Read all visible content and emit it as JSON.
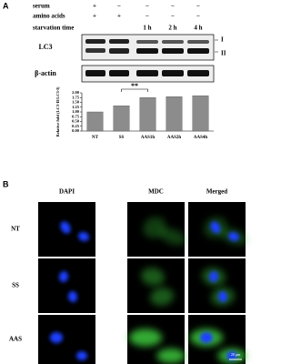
{
  "panel_a": {
    "label": "A",
    "conditions": [
      {
        "name": "serum",
        "marks": [
          "+",
          "−",
          "−",
          "−",
          "−"
        ]
      },
      {
        "name": "amino acids",
        "marks": [
          "+",
          "+",
          "−",
          "−",
          "−"
        ]
      },
      {
        "name": "starvation time",
        "marks": [
          null,
          null,
          "1 h",
          "2 h",
          "4 h"
        ]
      }
    ],
    "blots": [
      "LC3",
      "β-actin"
    ],
    "band_labels": [
      "I",
      "II"
    ]
  },
  "chart_data": {
    "type": "bar",
    "ylabel": "Relative fold (LC3-II/LC3-I)",
    "categories": [
      "NT",
      "SS",
      "AAS1h",
      "AAS2h",
      "AAS4h"
    ],
    "values": [
      1.0,
      1.32,
      1.75,
      1.8,
      1.85
    ],
    "color": "#8c8c8c",
    "ylim": [
      0,
      2
    ],
    "yticks": [
      {
        "value": 0,
        "label": "0.00"
      },
      {
        "value": 0.25,
        "label": "0.25"
      },
      {
        "value": 0.5,
        "label": "0.50"
      },
      {
        "value": 0.75,
        "label": "0.75"
      },
      {
        "value": 1,
        "label": "1.00"
      },
      {
        "value": 1.25,
        "label": "1.25"
      },
      {
        "value": 1.5,
        "label": "1.50"
      },
      {
        "value": 1.75,
        "label": "1.75"
      },
      {
        "value": 2,
        "label": "2.00"
      }
    ],
    "annotation": "**"
  },
  "panel_b": {
    "label": "B",
    "columns": [
      "DAPI",
      "MDC",
      "Merged"
    ],
    "rows": [
      "NT",
      "SS",
      "AAS"
    ],
    "scale_bar": "20 μm"
  }
}
